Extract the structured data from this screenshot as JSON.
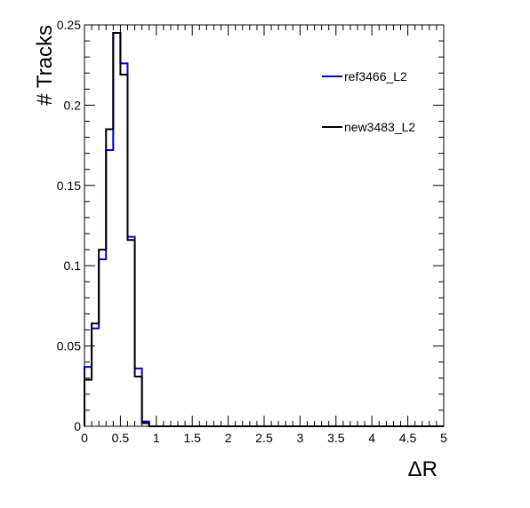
{
  "chart_data": {
    "type": "histogram",
    "xlabel": "ΔR",
    "ylabel": "# Tracks",
    "xlim": [
      0,
      5
    ],
    "ylim": [
      0,
      0.25
    ],
    "bin_width": 0.1,
    "x_ticks": [
      "0",
      "0.5",
      "1",
      "1.5",
      "2",
      "2.5",
      "3",
      "3.5",
      "4",
      "4.5",
      "5"
    ],
    "y_ticks": [
      "0",
      "0.05",
      "0.1",
      "0.15",
      "0.2",
      "0.25"
    ],
    "grid": false,
    "legend_position": "top-right",
    "series": [
      {
        "name": "ref3466_L2",
        "color": "#0000cc",
        "values": [
          0.037,
          0.061,
          0.104,
          0.172,
          0.245,
          0.226,
          0.118,
          0.036,
          0.003,
          0,
          0,
          0,
          0,
          0,
          0,
          0,
          0,
          0,
          0,
          0,
          0,
          0,
          0,
          0,
          0,
          0,
          0,
          0,
          0,
          0,
          0,
          0,
          0,
          0,
          0,
          0,
          0,
          0,
          0,
          0,
          0,
          0,
          0,
          0,
          0,
          0,
          0,
          0,
          0,
          0
        ]
      },
      {
        "name": "new3483_L2",
        "color": "#000000",
        "values": [
          0.029,
          0.064,
          0.11,
          0.185,
          0.245,
          0.219,
          0.116,
          0.031,
          0.002,
          0,
          0,
          0,
          0,
          0,
          0,
          0,
          0,
          0,
          0,
          0,
          0,
          0,
          0,
          0,
          0,
          0,
          0,
          0,
          0,
          0,
          0,
          0,
          0,
          0,
          0,
          0,
          0,
          0,
          0,
          0,
          0,
          0,
          0,
          0,
          0,
          0,
          0,
          0,
          0,
          0
        ]
      }
    ]
  }
}
